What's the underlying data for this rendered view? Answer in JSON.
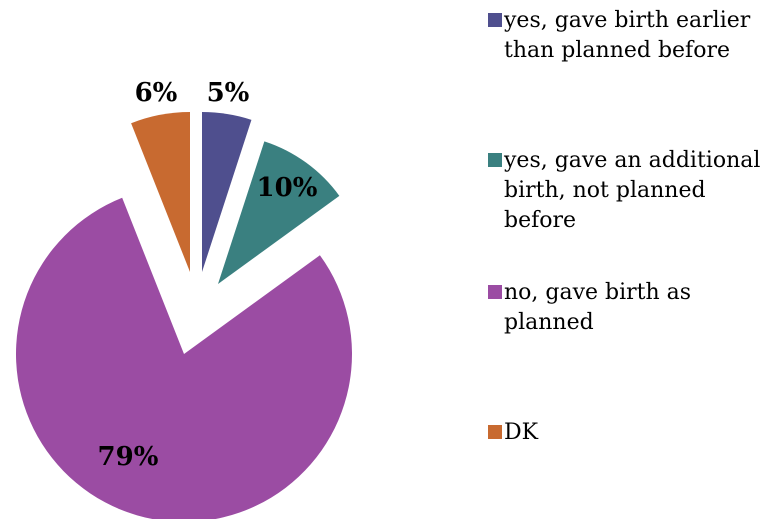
{
  "chart_data": {
    "type": "pie",
    "title": "",
    "categories": [
      "yes, gave birth earlier than planned before",
      "yes, gave an additional birth, not planned before",
      "no, gave birth as planned",
      "DK"
    ],
    "values": [
      5,
      10,
      79,
      6
    ],
    "value_labels": [
      "5%",
      "10%",
      "79%",
      "6%"
    ],
    "colors": [
      "#4f4f8e",
      "#3a8080",
      "#9b4ca3",
      "#c86a30"
    ],
    "exploded": true,
    "start_angle": "12 o'clock",
    "direction": "clockwise",
    "legend_position": "right"
  }
}
